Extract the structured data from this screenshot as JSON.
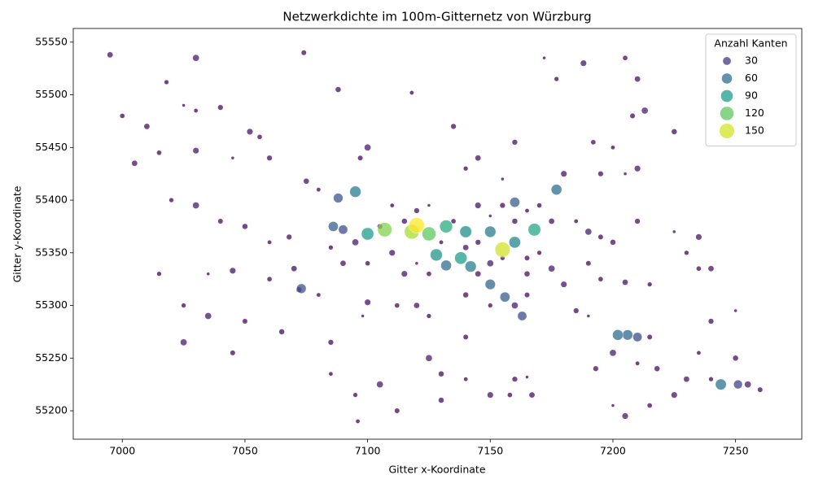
{
  "chart_data": {
    "type": "scatter",
    "title": "Netzwerkdichte im 100m-Gitternetz von Würzburg",
    "x_label": "Gitter x-Koordinate",
    "y_label": "Gitter y-Koordinate",
    "xlim": [
      6980,
      7277
    ],
    "ylim": [
      55173,
      55563
    ],
    "xticks": [
      7000,
      7050,
      7100,
      7150,
      7200,
      7250
    ],
    "yticks": [
      55200,
      55250,
      55300,
      55350,
      55400,
      55450,
      55500,
      55550
    ],
    "grid": false,
    "colormap": [
      "#440154",
      "#482878",
      "#3e4989",
      "#31688e",
      "#26828e",
      "#1f9e89",
      "#35b779",
      "#6ece58",
      "#b5de2b",
      "#fde725"
    ],
    "legend_position": "upper right",
    "size_legend": {
      "title": "Anzahl Kanten",
      "values": [
        30,
        60,
        90,
        120,
        150
      ]
    },
    "x": [
      7120,
      7118,
      7107,
      7155,
      7125,
      7100,
      7168,
      7140,
      7132,
      7150,
      7160,
      7128,
      7138,
      7142,
      7132,
      7095,
      7088,
      7177,
      7160,
      7150,
      7156,
      7163,
      7073,
      7202,
      7206,
      7210,
      7244,
      7251,
      7086,
      7090,
      7030,
      7040,
      7025,
      7052,
      7056,
      6995,
      7018,
      7030,
      7074,
      7088,
      7118,
      7135,
      7172,
      7188,
      7205,
      7210,
      7177,
      7213,
      7208,
      7225,
      7200,
      7195,
      7205,
      7210,
      7192,
      7145,
      7140,
      7100,
      7097,
      7075,
      7080,
      7060,
      7045,
      7030,
      7015,
      7010,
      7020,
      7030,
      7040,
      7050,
      7060,
      7068,
      7035,
      7045,
      7060,
      7070,
      7025,
      7035,
      7050,
      7072,
      7080,
      7085,
      7098,
      7100,
      7112,
      7120,
      7125,
      7125,
      7140,
      7130,
      7140,
      7160,
      7165,
      7150,
      7158,
      7167,
      7095,
      7105,
      7112,
      7130,
      7096,
      7185,
      7190,
      7180,
      7195,
      7205,
      7215,
      7190,
      7195,
      7200,
      7185,
      7210,
      7225,
      7235,
      7235,
      7240,
      7230,
      7200,
      7215,
      7218,
      7210,
      7193,
      7200,
      7205,
      7215,
      7230,
      7240,
      7255,
      7260,
      7250,
      7235,
      7240,
      7250,
      7225,
      7000,
      7005,
      7015,
      7025,
      7045,
      7065,
      7085,
      7160,
      7155,
      7180,
      7170,
      7175,
      7170,
      7175,
      7190,
      7165,
      7110,
      7120,
      7125,
      7110,
      7100,
      7090,
      7085,
      7095,
      7105,
      7115,
      7130,
      7145,
      7150,
      7145,
      7135,
      7140,
      7155,
      7150,
      7165,
      7160,
      7165,
      7155,
      7120,
      7115,
      7125,
      7145,
      7150,
      7160,
      7165,
      7140
    ],
    "y": [
      55376,
      55370,
      55372,
      55353,
      55368,
      55368,
      55372,
      55370,
      55375,
      55370,
      55360,
      55348,
      55345,
      55337,
      55338,
      55408,
      55402,
      55410,
      55398,
      55320,
      55308,
      55290,
      55316,
      55272,
      55272,
      55270,
      55225,
      55225,
      55375,
      55372,
      55485,
      55488,
      55490,
      55465,
      55460,
      55538,
      55512,
      55535,
      55540,
      55505,
      55502,
      55470,
      55535,
      55530,
      55535,
      55515,
      55515,
      55485,
      55480,
      55465,
      55450,
      55425,
      55425,
      55430,
      55455,
      55440,
      55430,
      55450,
      55440,
      55418,
      55410,
      55440,
      55440,
      55447,
      55445,
      55470,
      55400,
      55395,
      55380,
      55375,
      55360,
      55365,
      55330,
      55333,
      55325,
      55335,
      55300,
      55290,
      55285,
      55315,
      55310,
      55265,
      55290,
      55303,
      55300,
      55300,
      55290,
      55250,
      55270,
      55235,
      55230,
      55230,
      55232,
      55215,
      55215,
      55215,
      55215,
      55225,
      55200,
      55210,
      55190,
      55295,
      55290,
      55320,
      55325,
      55322,
      55320,
      55370,
      55365,
      55360,
      55380,
      55380,
      55370,
      55365,
      55335,
      55335,
      55350,
      55255,
      55270,
      55240,
      55245,
      55240,
      55205,
      55195,
      55205,
      55230,
      55230,
      55225,
      55220,
      55250,
      55255,
      55285,
      55295,
      55215,
      55480,
      55435,
      55330,
      55265,
      55255,
      55275,
      55235,
      55455,
      55420,
      55425,
      55395,
      55380,
      55350,
      55335,
      55340,
      55330,
      55395,
      55390,
      55395,
      55350,
      55340,
      55340,
      55355,
      55360,
      55375,
      55380,
      55360,
      55360,
      55385,
      55395,
      55380,
      55355,
      55345,
      55340,
      55345,
      55380,
      55390,
      55395,
      55340,
      55330,
      55330,
      55330,
      55300,
      55300,
      55310,
      55310
    ],
    "sizes": [
      160,
      140,
      130,
      150,
      120,
      90,
      95,
      80,
      100,
      70,
      75,
      85,
      90,
      70,
      60,
      70,
      45,
      60,
      50,
      55,
      50,
      40,
      45,
      60,
      55,
      40,
      65,
      35,
      50,
      40,
      4,
      8,
      3,
      12,
      6,
      10,
      5,
      15,
      7,
      9,
      4,
      8,
      3,
      12,
      6,
      10,
      5,
      15,
      7,
      9,
      4,
      8,
      3,
      12,
      6,
      10,
      5,
      15,
      7,
      9,
      4,
      8,
      3,
      12,
      6,
      10,
      5,
      15,
      7,
      9,
      4,
      8,
      3,
      12,
      6,
      10,
      5,
      15,
      7,
      9,
      4,
      8,
      3,
      12,
      6,
      10,
      5,
      15,
      7,
      9,
      4,
      8,
      3,
      12,
      6,
      10,
      5,
      15,
      7,
      9,
      4,
      8,
      3,
      12,
      6,
      10,
      5,
      15,
      7,
      9,
      4,
      8,
      3,
      12,
      6,
      10,
      5,
      15,
      7,
      9,
      4,
      8,
      3,
      12,
      6,
      10,
      5,
      15,
      7,
      9,
      4,
      8,
      3,
      12,
      6,
      10,
      5,
      15,
      7,
      9,
      4,
      8,
      3,
      12,
      6,
      10,
      5,
      15,
      7,
      9,
      4,
      8,
      3,
      12,
      6,
      10,
      5,
      15,
      7,
      9,
      4,
      8,
      3,
      12,
      6,
      10,
      5,
      15,
      7,
      9,
      4,
      8,
      3,
      12,
      6,
      10,
      5,
      15,
      7,
      9
    ]
  }
}
